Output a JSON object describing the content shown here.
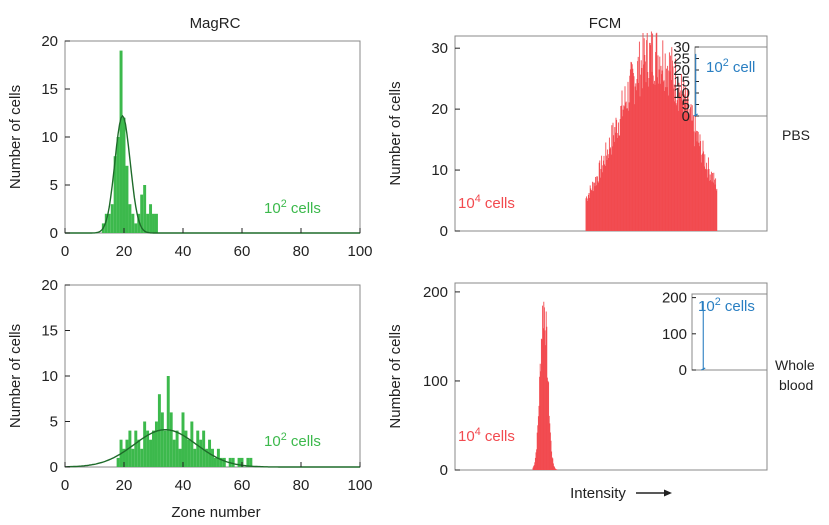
{
  "headings": {
    "left": "MagRC",
    "right": "FCM"
  },
  "row_labels": {
    "top": "PBS",
    "bottom_line1": "Whole",
    "bottom_line2": "blood"
  },
  "x_axis_label_left": "Zone number",
  "x_axis_label_right": "Intensity",
  "colors": {
    "green": "#3cb94c",
    "green_fit": "#1e6b2a",
    "red": "#f24a4f",
    "blue": "#2a7fc2",
    "axis": "#222222"
  },
  "chart_data": [
    {
      "id": "magrc_pbs",
      "type": "bar",
      "title": "MagRC",
      "xlabel": "",
      "ylabel": "Number of cells",
      "xlim": [
        0,
        100
      ],
      "ylim": [
        0,
        20
      ],
      "xticks": [
        0,
        20,
        40,
        60,
        80,
        100
      ],
      "yticks": [
        0,
        5,
        10,
        15,
        20
      ],
      "annotation_base": "10",
      "annotation_sup": "2",
      "annotation_rest": " cells",
      "bins_x": [
        13,
        14,
        15,
        16,
        17,
        18,
        19,
        20,
        21,
        22,
        23,
        24,
        25,
        26,
        27,
        28,
        29,
        30,
        31
      ],
      "bins_y": [
        1,
        2,
        2,
        3,
        8,
        10,
        19,
        12,
        7,
        3,
        2,
        1,
        2,
        4,
        5,
        2,
        3,
        2,
        2
      ],
      "fit": {
        "type": "gaussian",
        "mean": 19.5,
        "sd": 2.6,
        "peak": 12.2
      }
    },
    {
      "id": "magrc_blood",
      "type": "bar",
      "xlabel": "Zone number",
      "ylabel": "Number of cells",
      "xlim": [
        0,
        100
      ],
      "ylim": [
        0,
        20
      ],
      "xticks": [
        0,
        20,
        40,
        60,
        80,
        100
      ],
      "yticks": [
        0,
        5,
        10,
        15,
        20
      ],
      "annotation_base": "10",
      "annotation_sup": "2",
      "annotation_rest": " cells",
      "bins_x": [
        18,
        19,
        20,
        21,
        22,
        23,
        24,
        25,
        26,
        27,
        28,
        29,
        30,
        31,
        32,
        33,
        34,
        35,
        36,
        37,
        38,
        39,
        40,
        41,
        42,
        43,
        44,
        45,
        46,
        47,
        48,
        49,
        50,
        51,
        52,
        53,
        54,
        55,
        56,
        57,
        58,
        59,
        60,
        61,
        62,
        63
      ],
      "bins_y": [
        1,
        3,
        2,
        3,
        4,
        2,
        4,
        3,
        2,
        5,
        4,
        3,
        4,
        5,
        8,
        6,
        4,
        10,
        6,
        3,
        4,
        2,
        6,
        4,
        3,
        5,
        2,
        4,
        3,
        4,
        2,
        3,
        2,
        1,
        2,
        1,
        1,
        0,
        1,
        1,
        0,
        1,
        1,
        0,
        1,
        1
      ],
      "fit": {
        "type": "gaussian",
        "mean": 34,
        "sd": 10.5,
        "peak": 4.1
      }
    },
    {
      "id": "fcm_pbs",
      "type": "histogram",
      "xlabel": "",
      "ylabel": "Number of cells",
      "ylim": [
        0,
        32
      ],
      "yticks": [
        0,
        10,
        20,
        30
      ],
      "annotation_base": "10",
      "annotation_sup": "4",
      "annotation_rest": " cells",
      "distribution": {
        "center": 0.64,
        "width": 0.12,
        "peak": 29,
        "start": 0.42,
        "end": 0.84
      },
      "inset": {
        "ylim": [
          0,
          30
        ],
        "yticks": [
          0,
          5,
          10,
          15,
          20,
          25,
          30
        ],
        "annotation_base": "10",
        "annotation_sup": "2",
        "annotation_rest": " cell",
        "spike": {
          "at": 0.01,
          "value": 27
        }
      }
    },
    {
      "id": "fcm_blood",
      "type": "histogram",
      "xlabel": "Intensity",
      "ylabel": "Number of cells",
      "ylim": [
        0,
        210
      ],
      "yticks": [
        0,
        100,
        200
      ],
      "annotation_base": "10",
      "annotation_sup": "4",
      "annotation_rest": " cells",
      "distribution": {
        "center": 0.285,
        "width": 0.012,
        "peak": 185,
        "start": 0.25,
        "end": 0.35
      },
      "inset": {
        "ylim": [
          0,
          210
        ],
        "yticks": [
          0,
          100,
          200
        ],
        "annotation_base": "10",
        "annotation_sup": "2",
        "annotation_rest": " cells",
        "spike": {
          "at": 0.15,
          "value": 190
        }
      }
    }
  ]
}
